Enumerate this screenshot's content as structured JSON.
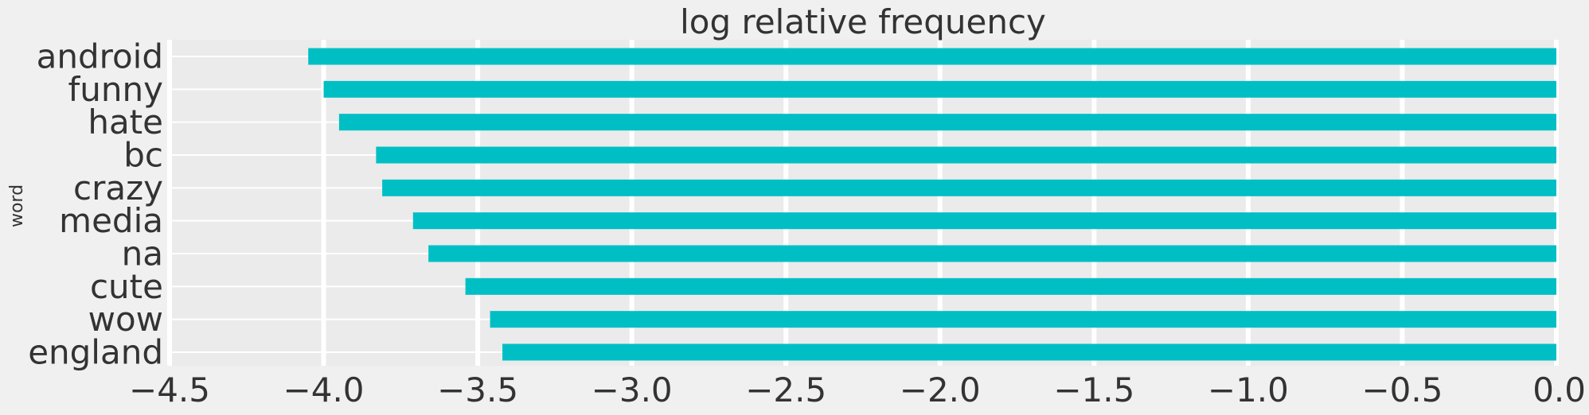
{
  "chart_data": {
    "type": "bar",
    "orientation": "horizontal",
    "title": "log relative frequency",
    "xlabel": "",
    "ylabel": "word",
    "categories": [
      "android",
      "funny",
      "hate",
      "bc",
      "crazy",
      "media",
      "na",
      "cute",
      "wow",
      "england"
    ],
    "values": [
      -4.05,
      -4.0,
      -3.95,
      -3.83,
      -3.81,
      -3.71,
      -3.66,
      -3.54,
      -3.46,
      -3.42
    ],
    "xlim": [
      -4.5,
      0.0
    ],
    "xticks": [
      "−4.5",
      "−4.0",
      "−3.5",
      "−3.0",
      "−2.5",
      "−2.0",
      "−1.5",
      "−1.0",
      "−0.5",
      "0.0"
    ],
    "xtick_values": [
      -4.5,
      -4.0,
      -3.5,
      -3.0,
      -2.5,
      -2.0,
      -1.5,
      -1.0,
      -0.5,
      0.0
    ],
    "grid": true,
    "legend": "none",
    "colors": {
      "bar": "#00bfc4",
      "background": "#f0f0f0",
      "grid": "#ffffff",
      "text": "#333333"
    }
  }
}
